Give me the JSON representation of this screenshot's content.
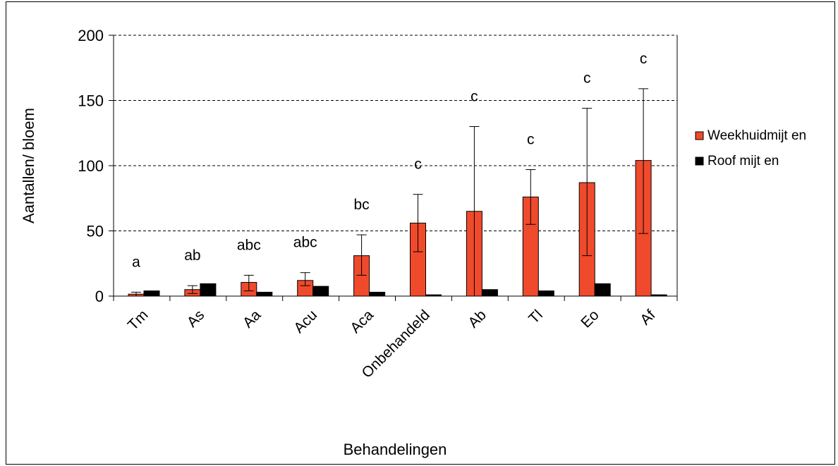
{
  "chart_data": {
    "type": "bar",
    "xlabel": "Behandelingen",
    "ylabel": "Aantallen/ bloem",
    "ylim": [
      0,
      200
    ],
    "yticks": [
      "0",
      "50",
      "100",
      "150",
      "200"
    ],
    "grid": "horizontal dashed",
    "legend_position": "right",
    "categories": [
      "Tm",
      "As",
      "Aa",
      "Acu",
      "Aca",
      "Onbehandeld",
      "Ab",
      "Tl",
      "Eo",
      "Af"
    ],
    "series": [
      {
        "name": "Weekhuidmijt en",
        "color": "#f04a2c",
        "values": [
          1.5,
          5,
          10.5,
          12,
          31,
          56,
          65,
          76,
          87,
          104
        ],
        "err_low": [
          0,
          2,
          4,
          8,
          16,
          34,
          0,
          55,
          31,
          48
        ],
        "err_high": [
          3,
          8,
          16,
          18,
          47,
          78,
          130,
          97,
          144,
          159
        ]
      },
      {
        "name": "Roof mijt en",
        "color": "#000000",
        "values": [
          4,
          9.5,
          3,
          7.5,
          3,
          1,
          5,
          4,
          9.5,
          1
        ]
      }
    ],
    "annotations": [
      "a",
      "ab",
      "abc",
      "abc",
      "bc",
      "c",
      "c",
      "c",
      "c",
      "c"
    ]
  }
}
